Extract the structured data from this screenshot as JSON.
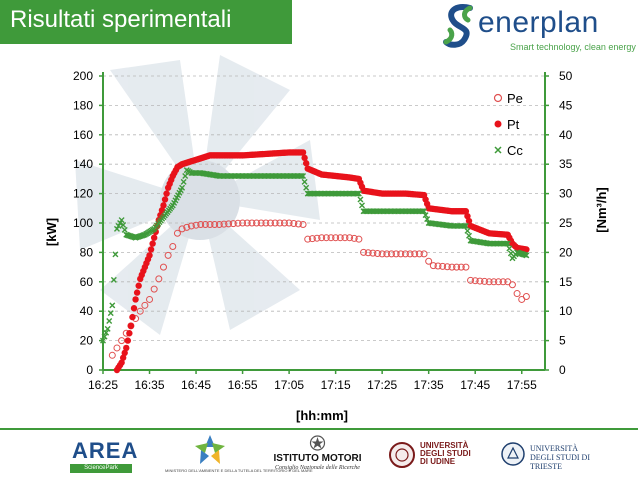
{
  "slide": {
    "title": "Risultati sperimentali",
    "logo_name": "enerplan",
    "logo_tagline": "Smart technology, clean energy"
  },
  "colors": {
    "green": "#3f9a3a",
    "red": "#e8121b",
    "pe": "#e05050",
    "navy": "#1f4e8a"
  },
  "chart_data": {
    "type": "line",
    "x_unit": "time hh:mm",
    "xlabel": "[hh:mm]",
    "ylabel_left": "[kW]",
    "ylabel_right": "[Nm³/h]",
    "xlim": [
      "16:25",
      "18:00"
    ],
    "ylim_left": [
      0,
      200
    ],
    "ylim_right": [
      0,
      50
    ],
    "x_ticks": [
      "16:25",
      "16:35",
      "16:45",
      "16:55",
      "17:05",
      "17:15",
      "17:25",
      "17:35",
      "17:45",
      "17:55"
    ],
    "y_ticks_left": [
      "0",
      "20",
      "40",
      "60",
      "80",
      "100",
      "120",
      "140",
      "160",
      "180",
      "200"
    ],
    "y_ticks_right": [
      "0",
      "5",
      "10",
      "15",
      "20",
      "25",
      "30",
      "35",
      "40",
      "45",
      "50"
    ],
    "grid": "horizontal dashed",
    "legend_position": "top-right",
    "series": [
      {
        "name": "Pe",
        "axis": "left",
        "marker": "open-circle",
        "color": "#e05050",
        "points": [
          [
            "16:27",
            10
          ],
          [
            "16:28",
            15
          ],
          [
            "16:29",
            20
          ],
          [
            "16:30",
            25
          ],
          [
            "16:31",
            30
          ],
          [
            "16:32",
            35
          ],
          [
            "16:33",
            40
          ],
          [
            "16:34",
            44
          ],
          [
            "16:35",
            48
          ],
          [
            "16:36",
            55
          ],
          [
            "16:37",
            62
          ],
          [
            "16:38",
            70
          ],
          [
            "16:39",
            78
          ],
          [
            "16:40",
            84
          ],
          [
            "16:41",
            93
          ],
          [
            "16:42",
            96
          ],
          [
            "16:44",
            98
          ],
          [
            "16:46",
            99
          ],
          [
            "16:50",
            99
          ],
          [
            "16:55",
            100
          ],
          [
            "17:00",
            100
          ],
          [
            "17:05",
            100
          ],
          [
            "17:08",
            99
          ],
          [
            "17:09",
            89
          ],
          [
            "17:12",
            90
          ],
          [
            "17:15",
            90
          ],
          [
            "17:18",
            90
          ],
          [
            "17:20",
            89
          ],
          [
            "17:21",
            80
          ],
          [
            "17:25",
            79
          ],
          [
            "17:30",
            79
          ],
          [
            "17:34",
            79
          ],
          [
            "17:35",
            74
          ],
          [
            "17:36",
            71
          ],
          [
            "17:40",
            70
          ],
          [
            "17:43",
            70
          ],
          [
            "17:44",
            61
          ],
          [
            "17:48",
            60
          ],
          [
            "17:52",
            60
          ],
          [
            "17:53",
            58
          ],
          [
            "17:54",
            52
          ],
          [
            "17:55",
            48
          ],
          [
            "17:56",
            50
          ]
        ]
      },
      {
        "name": "Pt",
        "axis": "left",
        "marker": "filled-circle",
        "color": "#e8121b",
        "points": [
          [
            "16:28",
            0
          ],
          [
            "16:29",
            5
          ],
          [
            "16:30",
            15
          ],
          [
            "16:31",
            30
          ],
          [
            "16:32",
            48
          ],
          [
            "16:33",
            62
          ],
          [
            "16:34",
            70
          ],
          [
            "16:35",
            78
          ],
          [
            "16:36",
            90
          ],
          [
            "16:37",
            102
          ],
          [
            "16:38",
            112
          ],
          [
            "16:39",
            124
          ],
          [
            "16:40",
            132
          ],
          [
            "16:41",
            138
          ],
          [
            "16:42",
            140
          ],
          [
            "16:44",
            142
          ],
          [
            "16:46",
            144
          ],
          [
            "16:48",
            146
          ],
          [
            "16:50",
            146
          ],
          [
            "16:55",
            146
          ],
          [
            "17:00",
            147
          ],
          [
            "17:05",
            148
          ],
          [
            "17:08",
            148
          ],
          [
            "17:09",
            137
          ],
          [
            "17:12",
            133
          ],
          [
            "17:15",
            132
          ],
          [
            "17:18",
            131
          ],
          [
            "17:20",
            130
          ],
          [
            "17:21",
            122
          ],
          [
            "17:25",
            120
          ],
          [
            "17:30",
            120
          ],
          [
            "17:34",
            119
          ],
          [
            "17:35",
            110
          ],
          [
            "17:40",
            108
          ],
          [
            "17:43",
            108
          ],
          [
            "17:44",
            98
          ],
          [
            "17:48",
            93
          ],
          [
            "17:52",
            92
          ],
          [
            "17:53",
            86
          ],
          [
            "17:54",
            83
          ],
          [
            "17:56",
            82
          ]
        ]
      },
      {
        "name": "Cc",
        "axis": "right",
        "marker": "cross",
        "color": "#3f9a3a",
        "points": [
          [
            "16:25",
            5
          ],
          [
            "16:26",
            7
          ],
          [
            "16:27",
            11
          ],
          [
            "16:28",
            24
          ],
          [
            "16:29",
            25.5
          ],
          [
            "16:30",
            23
          ],
          [
            "16:32",
            22.5
          ],
          [
            "16:34",
            23
          ],
          [
            "16:36",
            24
          ],
          [
            "16:38",
            26
          ],
          [
            "16:40",
            28
          ],
          [
            "16:42",
            31
          ],
          [
            "16:43",
            34
          ],
          [
            "16:44",
            33.5
          ],
          [
            "16:46",
            33.5
          ],
          [
            "16:50",
            33
          ],
          [
            "16:55",
            33
          ],
          [
            "17:00",
            33
          ],
          [
            "17:05",
            33
          ],
          [
            "17:08",
            33
          ],
          [
            "17:09",
            30
          ],
          [
            "17:12",
            30
          ],
          [
            "17:15",
            30
          ],
          [
            "17:18",
            30
          ],
          [
            "17:20",
            30
          ],
          [
            "17:21",
            27
          ],
          [
            "17:25",
            27
          ],
          [
            "17:30",
            27
          ],
          [
            "17:34",
            27
          ],
          [
            "17:35",
            25
          ],
          [
            "17:40",
            24.5
          ],
          [
            "17:43",
            24.5
          ],
          [
            "17:44",
            22
          ],
          [
            "17:48",
            21.5
          ],
          [
            "17:52",
            21.5
          ],
          [
            "17:53",
            19
          ],
          [
            "17:54",
            20
          ],
          [
            "17:56",
            19.5
          ]
        ]
      }
    ]
  },
  "footer": {
    "area_name": "AREA",
    "area_sub": "SciencePark",
    "minamb": "MINISTERO DELL'AMBIENTE E DELLA TUTELA DEL TERRITORIO E DEL MARE",
    "istmot_name": "ISTITUTO MOTORI",
    "istmot_sub": "Consiglio Nazionale delle Ricerche",
    "uniud_line1": "UNIVERSITÀ",
    "uniud_line2": "DEGLI STUDI",
    "uniud_line3": "DI UDINE",
    "units_line1": "UNIVERSITÀ",
    "units_line2": "DEGLI STUDI DI TRIESTE"
  }
}
